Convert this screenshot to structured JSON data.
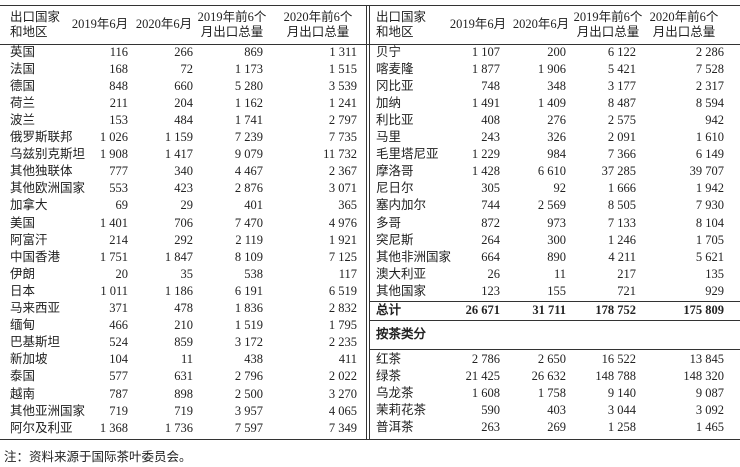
{
  "header": {
    "columns": [
      "出口国家\n和地区",
      "2019年6月",
      "2020年6月",
      "2019年前6个\n月出口总量",
      "2020年前6个\n月出口总量"
    ]
  },
  "left_table": {
    "rows": [
      [
        "英国",
        "116",
        "266",
        "869",
        "1 311"
      ],
      [
        "法国",
        "168",
        "72",
        "1 173",
        "1 515"
      ],
      [
        "德国",
        "848",
        "660",
        "5 280",
        "3 539"
      ],
      [
        "荷兰",
        "211",
        "204",
        "1 162",
        "1 241"
      ],
      [
        "波兰",
        "153",
        "484",
        "1 741",
        "2 797"
      ],
      [
        "俄罗斯联邦",
        "1 026",
        "1 159",
        "7 239",
        "7 735"
      ],
      [
        "乌兹别克斯坦",
        "1 908",
        "1 417",
        "9 079",
        "11 732"
      ],
      [
        "其他独联体",
        "777",
        "340",
        "4 467",
        "2 367"
      ],
      [
        "其他欧洲国家",
        "553",
        "423",
        "2 876",
        "3 071"
      ],
      [
        "加拿大",
        "69",
        "29",
        "401",
        "365"
      ],
      [
        "美国",
        "1 401",
        "706",
        "7 470",
        "4 976"
      ],
      [
        "阿富汗",
        "214",
        "292",
        "2 119",
        "1 921"
      ],
      [
        "中国香港",
        "1 751",
        "1 847",
        "8 109",
        "7 125"
      ],
      [
        "伊朗",
        "20",
        "35",
        "538",
        "117"
      ],
      [
        "日本",
        "1 011",
        "1 186",
        "6 191",
        "6 519"
      ],
      [
        "马来西亚",
        "371",
        "478",
        "1 836",
        "2 832"
      ],
      [
        "缅甸",
        "466",
        "210",
        "1 519",
        "1 795"
      ],
      [
        "巴基斯坦",
        "524",
        "859",
        "3 172",
        "2 235"
      ],
      [
        "新加坡",
        "104",
        "11",
        "438",
        "411"
      ],
      [
        "泰国",
        "577",
        "631",
        "2 796",
        "2 022"
      ],
      [
        "越南",
        "787",
        "898",
        "2 500",
        "3 270"
      ],
      [
        "其他亚洲国家",
        "719",
        "719",
        "3 957",
        "4 065"
      ],
      [
        "阿尔及利亚",
        "1 368",
        "1 736",
        "7 597",
        "7 349"
      ]
    ]
  },
  "right_table": {
    "rows": [
      [
        "贝宁",
        "1 107",
        "200",
        "6 122",
        "2 286"
      ],
      [
        "喀麦隆",
        "1 877",
        "1 906",
        "5 421",
        "7 528"
      ],
      [
        "冈比亚",
        "748",
        "348",
        "3 177",
        "2 317"
      ],
      [
        "加纳",
        "1 491",
        "1 409",
        "8 487",
        "8 594"
      ],
      [
        "利比亚",
        "408",
        "276",
        "2 575",
        "942"
      ],
      [
        "马里",
        "243",
        "326",
        "2 091",
        "1 610"
      ],
      [
        "毛里塔尼亚",
        "1 229",
        "984",
        "7 366",
        "6 149"
      ],
      [
        "摩洛哥",
        "1 428",
        "6 610",
        "37 285",
        "39 707"
      ],
      [
        "尼日尔",
        "305",
        "92",
        "1 666",
        "1 942"
      ],
      [
        "塞内加尔",
        "744",
        "2 569",
        "8 505",
        "7 930"
      ],
      [
        "多哥",
        "872",
        "973",
        "7 133",
        "8 104"
      ],
      [
        "突尼斯",
        "264",
        "300",
        "1 246",
        "1 705"
      ],
      [
        "其他非洲国家",
        "664",
        "890",
        "4 211",
        "5 621"
      ],
      [
        "澳大利亚",
        "26",
        "11",
        "217",
        "135"
      ],
      [
        "其他国家",
        "123",
        "155",
        "721",
        "929"
      ]
    ],
    "total": [
      "总计",
      "26 671",
      "31 711",
      "178 752",
      "175 809"
    ],
    "section_title": "按茶类分",
    "tea_rows": [
      [
        "红茶",
        "2 786",
        "2 650",
        "16 522",
        "13 845"
      ],
      [
        "绿茶",
        "21 425",
        "26 632",
        "148 788",
        "148 320"
      ],
      [
        "乌龙茶",
        "1 608",
        "1 758",
        "9 140",
        "9 087"
      ],
      [
        "茉莉花茶",
        "590",
        "403",
        "3 044",
        "3 092"
      ],
      [
        "普洱茶",
        "263",
        "269",
        "1 258",
        "1 465"
      ]
    ]
  },
  "footnote": "注：资料来源于国际茶叶委员会。"
}
